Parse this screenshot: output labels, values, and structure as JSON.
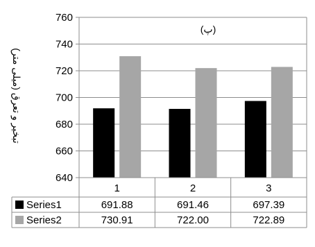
{
  "chart_data": {
    "type": "bar",
    "title": "(پ)",
    "xlabel": "",
    "ylabel": "تبخیر و تعرق (میلی متر)",
    "categories": [
      "1",
      "2",
      "3"
    ],
    "series": [
      {
        "name": "Series1",
        "values": [
          691.88,
          691.46,
          697.39
        ],
        "value_labels": [
          "691.88",
          "691.46",
          "697.39"
        ],
        "color": "#000000"
      },
      {
        "name": "Series2",
        "values": [
          730.91,
          722.0,
          722.89
        ],
        "value_labels": [
          "730.91",
          "722.00",
          "722.89"
        ],
        "color": "#a6a6a6"
      }
    ],
    "ylim": [
      640,
      760
    ],
    "yticks": [
      "640",
      "660",
      "680",
      "700",
      "720",
      "740",
      "760"
    ],
    "grid": true,
    "legend": "data-table"
  },
  "colors": {
    "grid": "#8c8c8c",
    "border": "#8c8c8c"
  }
}
